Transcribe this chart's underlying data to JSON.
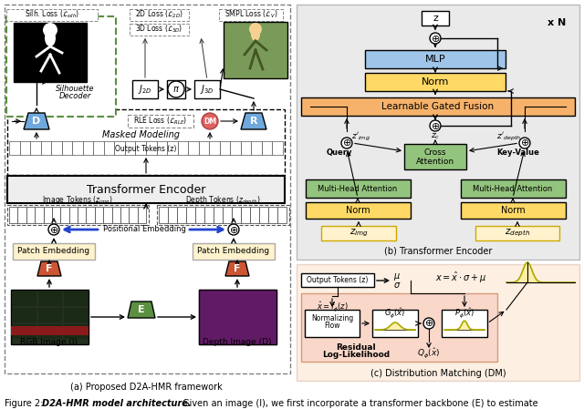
{
  "caption_a": "(a) Proposed D2A-HMR framework",
  "caption_b": "(b) Transformer Encoder",
  "caption_c": "(c) Distribution Matching (DM)",
  "fig_caption_prefix": "Figure 2: ",
  "fig_caption_bold": "D2A-HMR model architecture.",
  "fig_caption_rest": " Given an image (I), we first incorporate a transformer backbone (E) to estimate",
  "yellow_patch": "#fff2cc",
  "yellow_norm": "#ffd966",
  "green_attn": "#93c47d",
  "blue_mlp": "#9fc5e8",
  "orange_fuse": "#f6b26b",
  "pink_dm_bg": "#fce5cd",
  "gray_enc": "#e8e8e8",
  "blue_block": "#6fa8dc",
  "red_block": "#cc4444",
  "pink_dm": "#e06666",
  "green_e": "#6aa84f",
  "dashed_green": "#6aa84f"
}
